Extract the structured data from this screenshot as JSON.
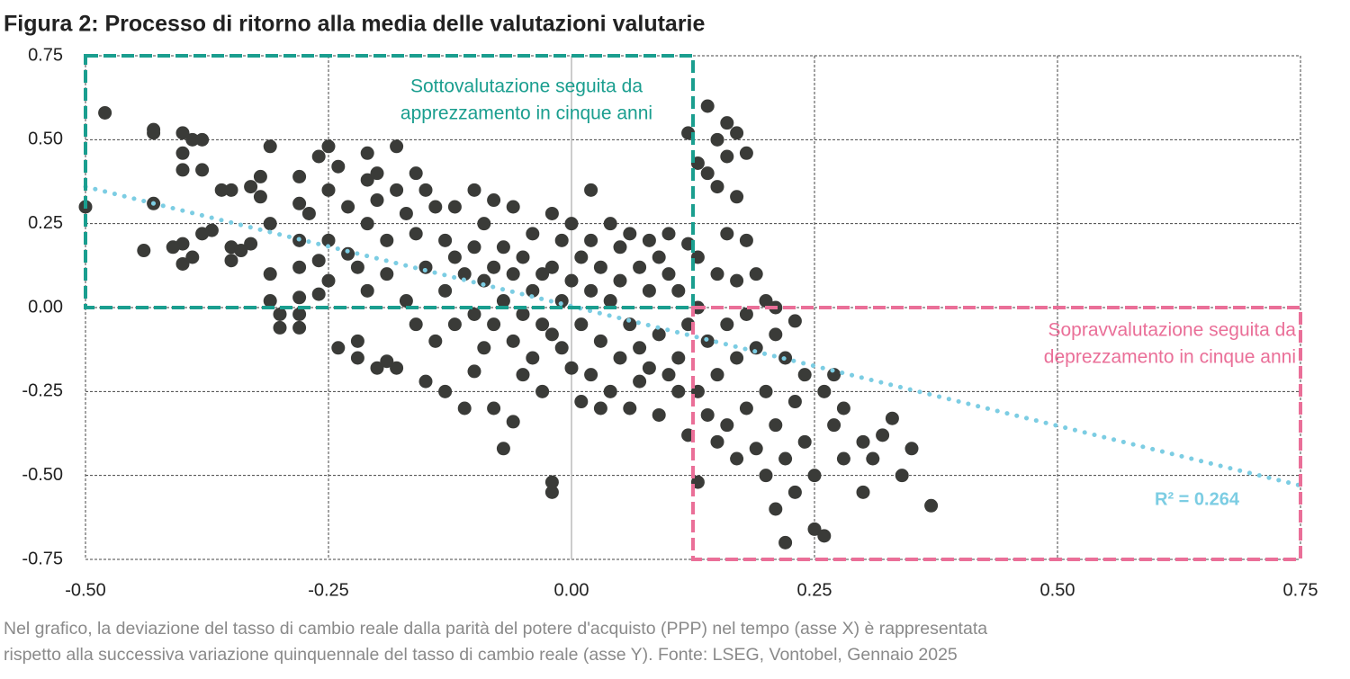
{
  "chart_data": {
    "type": "scatter",
    "title": "Figura 2: Processo di ritorno alla media delle valutazioni valutarie",
    "caption": [
      "Nel grafico, la deviazione del tasso di cambio reale dalla parità del potere d'acquisto (PPP) nel tempo (asse X) è rappresentata",
      "rispetto alla successiva variazione quinquennale del tasso di cambio reale (asse Y). Fonte: LSEG, Vontobel, Gennaio 2025"
    ],
    "color": "#3a3b38",
    "xlim": [
      -0.5,
      0.75
    ],
    "ylim": [
      -0.75,
      0.75
    ],
    "xticks": [
      {
        "value": -0.5,
        "label": "-0.50"
      },
      -0.25,
      {
        "value": 0,
        "label": "0.00"
      },
      0.25,
      {
        "value": 0.5,
        "label": "0.50"
      },
      0.75
    ],
    "yticks": [
      0.75,
      {
        "value": 0.5,
        "label": "0.50"
      },
      0.25,
      {
        "value": 0,
        "label": "0.00"
      },
      -0.25,
      {
        "value": -0.5,
        "label": "-0.50"
      },
      -0.75
    ],
    "grid": true,
    "x": [
      -0.5,
      -0.48,
      -0.43,
      -0.43,
      -0.4,
      -0.39,
      -0.38,
      -0.43,
      -0.44,
      -0.4,
      -0.4,
      -0.38,
      -0.36,
      -0.35,
      -0.37,
      -0.38,
      -0.4,
      -0.41,
      -0.4,
      -0.39,
      -0.35,
      -0.35,
      -0.33,
      -0.33,
      -0.34,
      -0.31,
      -0.32,
      -0.32,
      -0.31,
      -0.31,
      -0.31,
      -0.3,
      -0.3,
      -0.28,
      -0.28,
      -0.28,
      -0.28,
      -0.28,
      -0.28,
      -0.28,
      -0.27,
      -0.26,
      -0.26,
      -0.26,
      -0.25,
      -0.25,
      -0.25,
      -0.25,
      -0.24,
      -0.24,
      -0.23,
      -0.23,
      -0.22,
      -0.22,
      -0.22,
      -0.21,
      -0.21,
      -0.21,
      -0.21,
      -0.2,
      -0.2,
      -0.2,
      -0.19,
      -0.19,
      -0.19,
      -0.18,
      -0.18,
      -0.18,
      -0.17,
      -0.17,
      -0.16,
      -0.16,
      -0.16,
      -0.15,
      -0.15,
      -0.15,
      -0.14,
      -0.14,
      -0.13,
      -0.13,
      -0.13,
      -0.12,
      -0.12,
      -0.12,
      -0.11,
      -0.11,
      -0.1,
      -0.1,
      -0.1,
      -0.1,
      -0.09,
      -0.09,
      -0.09,
      -0.08,
      -0.08,
      -0.08,
      -0.08,
      -0.07,
      -0.07,
      -0.07,
      -0.06,
      -0.06,
      -0.06,
      -0.06,
      -0.05,
      -0.05,
      -0.05,
      -0.04,
      -0.04,
      -0.04,
      -0.03,
      -0.03,
      -0.03,
      -0.02,
      -0.02,
      -0.02,
      -0.01,
      -0.01,
      -0.01,
      -0.02,
      -0.02,
      0,
      0,
      0,
      0.01,
      0.01,
      0.01,
      0.02,
      0.02,
      0.02,
      0.02,
      0.03,
      0.03,
      0.03,
      0.04,
      0.04,
      0.04,
      0.05,
      0.05,
      0.05,
      0.06,
      0.06,
      0.06,
      0.07,
      0.07,
      0.07,
      0.08,
      0.08,
      0.08,
      0.09,
      0.09,
      0.09,
      0.1,
      0.1,
      0.1,
      0.11,
      0.11,
      0.11,
      0.12,
      0.12,
      0.12,
      0.12,
      0.13,
      0.13,
      0.13,
      0.13,
      0.13,
      0.14,
      0.14,
      0.14,
      0.14,
      0.15,
      0.15,
      0.15,
      0.15,
      0.15,
      0.16,
      0.16,
      0.16,
      0.16,
      0.16,
      0.17,
      0.17,
      0.17,
      0.17,
      0.17,
      0.18,
      0.18,
      0.18,
      0.18,
      0.19,
      0.19,
      0.19,
      0.2,
      0.2,
      0.2,
      0.21,
      0.21,
      0.21,
      0.21,
      0.22,
      0.22,
      0.22,
      0.23,
      0.23,
      0.23,
      0.24,
      0.24,
      0.25,
      0.25,
      0.26,
      0.26,
      0.27,
      0.27,
      0.28,
      0.28,
      0.3,
      0.3,
      0.31,
      0.32,
      0.33,
      0.34,
      0.35,
      0.37
    ],
    "y": [
      0.3,
      0.58,
      0.53,
      0.52,
      0.52,
      0.5,
      0.5,
      0.31,
      0.17,
      0.46,
      0.41,
      0.41,
      0.35,
      0.35,
      0.23,
      0.22,
      0.19,
      0.18,
      0.13,
      0.15,
      0.14,
      0.18,
      0.36,
      0.19,
      0.17,
      0.48,
      0.39,
      0.33,
      0.25,
      0.1,
      0.02,
      -0.02,
      -0.06,
      0.39,
      0.31,
      0.2,
      0.12,
      0.03,
      -0.02,
      -0.06,
      0.28,
      0.45,
      0.14,
      0.04,
      0.48,
      0.35,
      0.2,
      0.08,
      0.42,
      -0.12,
      0.3,
      0.16,
      0.12,
      -0.1,
      -0.15,
      0.46,
      0.38,
      0.25,
      0.05,
      0.4,
      -0.18,
      0.32,
      0.2,
      -0.16,
      0.1,
      0.48,
      0.35,
      -0.18,
      0.28,
      0.02,
      0.4,
      0.22,
      -0.05,
      0.35,
      0.12,
      -0.22,
      0.3,
      -0.1,
      0.2,
      0.05,
      -0.25,
      0.3,
      0.15,
      -0.05,
      -0.3,
      0.1,
      0.35,
      0.18,
      -0.02,
      -0.19,
      0.25,
      0.08,
      -0.12,
      0.32,
      0.12,
      -0.05,
      -0.3,
      0.18,
      0.02,
      -0.42,
      0.3,
      0.1,
      -0.1,
      -0.34,
      0.15,
      -0.02,
      -0.2,
      0.22,
      0.05,
      -0.15,
      0.1,
      -0.05,
      -0.25,
      0.28,
      0.12,
      -0.08,
      0.2,
      0.02,
      -0.12,
      -0.52,
      -0.55,
      0.25,
      0.08,
      -0.18,
      0.15,
      -0.05,
      -0.28,
      0.35,
      0.2,
      0.05,
      -0.2,
      0.12,
      -0.1,
      -0.3,
      0.25,
      0.02,
      -0.25,
      0.18,
      0.08,
      -0.15,
      0.22,
      -0.05,
      -0.3,
      0.12,
      -0.12,
      -0.22,
      0.2,
      0.05,
      -0.18,
      0.15,
      -0.08,
      -0.32,
      0.22,
      0.1,
      -0.2,
      0.05,
      -0.15,
      -0.25,
      0.52,
      0.19,
      -0.05,
      -0.38,
      0.43,
      0.15,
      0,
      -0.25,
      -0.52,
      0.6,
      0.4,
      -0.1,
      -0.32,
      0.5,
      0.36,
      0.1,
      -0.2,
      -0.4,
      0.55,
      0.45,
      0.22,
      -0.05,
      -0.35,
      0.52,
      0.33,
      0.08,
      -0.15,
      -0.45,
      0.46,
      0.2,
      -0.02,
      -0.3,
      0.1,
      -0.12,
      -0.42,
      0.02,
      -0.25,
      -0.5,
      0,
      -0.08,
      -0.35,
      -0.6,
      -0.15,
      -0.45,
      -0.7,
      -0.04,
      -0.28,
      -0.55,
      -0.2,
      -0.4,
      -0.66,
      -0.5,
      -0.25,
      -0.68,
      -0.2,
      -0.35,
      -0.45,
      -0.3,
      -0.4,
      -0.55,
      -0.45,
      -0.38,
      -0.33,
      -0.5,
      -0.42,
      -0.59
    ],
    "regions": [
      {
        "label": [
          "Sottovalutazione seguita da",
          "apprezzamento in cinque anni"
        ],
        "color": "#1a9e8f",
        "xlim": [
          -0.5,
          0.125
        ],
        "ylim": [
          0,
          0.75
        ]
      },
      {
        "label": [
          "Sopravvalutazione seguita da",
          "deprezzamento in cinque anni"
        ],
        "color": "#ea6f98",
        "xlim": [
          0.125,
          0.75
        ],
        "ylim": [
          -0.75,
          0
        ]
      }
    ],
    "trendline": {
      "x": [
        -0.5,
        0.75
      ],
      "y": [
        0.36,
        -0.53
      ],
      "color": "#7ccde3",
      "label": "R² = 0.264"
    }
  }
}
